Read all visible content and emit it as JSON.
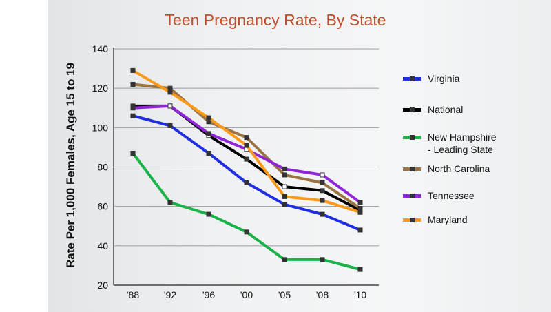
{
  "chart_data": {
    "type": "line",
    "title": "Teen Pregnancy Rate, By State",
    "xlabel": "",
    "ylabel": "Rate Per 1,000 Females, Age 15 to 19",
    "categories": [
      "'88",
      "'92",
      "'96",
      "'00",
      "'05",
      "'08",
      "'10"
    ],
    "ylim": [
      20,
      140
    ],
    "yticks": [
      20,
      40,
      60,
      80,
      100,
      120,
      140
    ],
    "grid": true,
    "legend_position": "right",
    "series": [
      {
        "name": "Virginia",
        "color": "#1f2fe0",
        "values": [
          106,
          101,
          87,
          72,
          61,
          56,
          48
        ]
      },
      {
        "name": "National",
        "color": "#000000",
        "values": [
          111,
          111,
          96,
          84,
          70,
          68,
          58
        ]
      },
      {
        "name": "New Hampshire\n- Leading State",
        "color": "#1bb24a",
        "values": [
          87,
          62,
          56,
          47,
          33,
          33,
          28
        ]
      },
      {
        "name": "North Carolina",
        "color": "#9b7443",
        "values": [
          122,
          120,
          103,
          95,
          76,
          72,
          59
        ]
      },
      {
        "name": "Tennessee",
        "color": "#8f25d6",
        "values": [
          110,
          111,
          97,
          89,
          79,
          76,
          62
        ]
      },
      {
        "name": "Maryland",
        "color": "#f99a1c",
        "values": [
          129,
          118,
          105,
          91,
          65,
          63,
          57
        ]
      }
    ]
  }
}
